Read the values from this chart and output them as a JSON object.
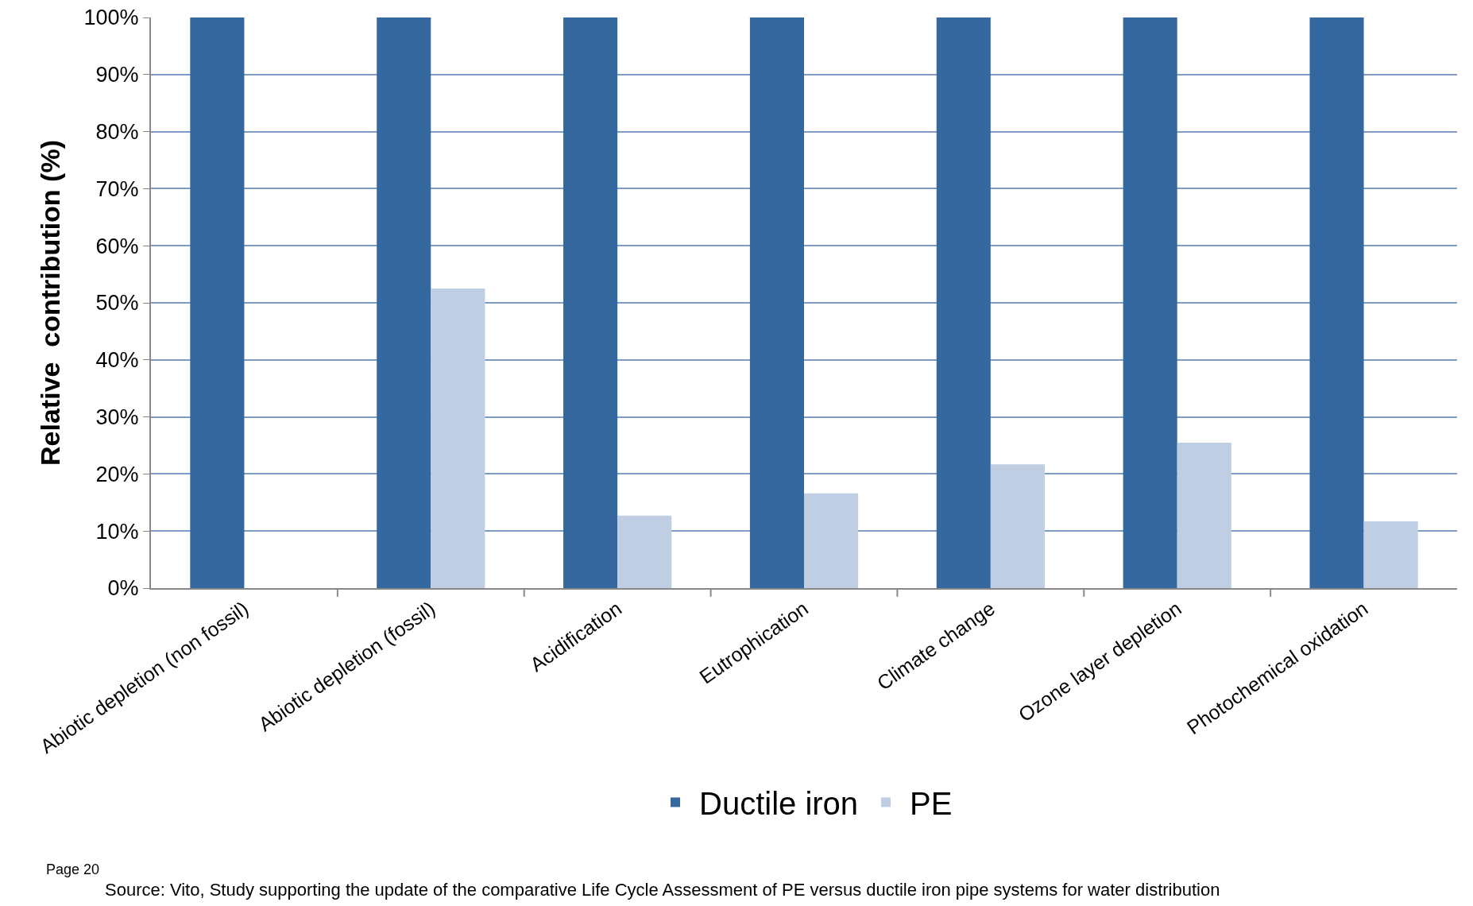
{
  "chart_data": {
    "type": "bar",
    "ylabel": "Relative  contribution (%)",
    "categories": [
      "Abiotic depletion (non fossil)",
      "Abiotic depletion (fossil)",
      "Acidification",
      "Eutrophication",
      "Climate change",
      "Ozone layer depletion",
      "Photochemical oxidation"
    ],
    "series": [
      {
        "name": "Ductile iron",
        "color": "#3668a0",
        "values": [
          100,
          100,
          100,
          100,
          100,
          100,
          100
        ]
      },
      {
        "name": "PE",
        "color": "#bfcee2",
        "values": [
          0,
          52.5,
          12.7,
          16.6,
          21.7,
          25.5,
          11.7
        ]
      }
    ],
    "ylim": [
      0,
      100
    ],
    "yticks": [
      {
        "value": 0,
        "label": "0%"
      },
      {
        "value": 10,
        "label": "10%"
      },
      {
        "value": 20,
        "label": "20%"
      },
      {
        "value": 30,
        "label": "30%"
      },
      {
        "value": 40,
        "label": "40%"
      },
      {
        "value": 50,
        "label": "50%"
      },
      {
        "value": 60,
        "label": "60%"
      },
      {
        "value": 70,
        "label": "70%"
      },
      {
        "value": 80,
        "label": "80%"
      },
      {
        "value": 90,
        "label": "90%"
      },
      {
        "value": 100,
        "label": "100%"
      }
    ],
    "grid": "y",
    "legend": "bottom",
    "annotations": [
      "Page 20",
      "Source: Vito, Study supporting the update of the comparative Life Cycle Assessment of PE versus ductile iron pipe systems for water distribution"
    ]
  }
}
